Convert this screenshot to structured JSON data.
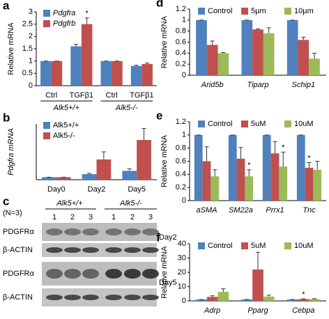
{
  "chart_data": [
    {
      "type": "bar",
      "label": "a",
      "ylabel": "Relative mRNA",
      "categories": [
        "Ctrl",
        "TGFβ1",
        "Ctrl",
        "TGFβ1"
      ],
      "groups": [
        "Alk5+/+",
        "Alk5-/-"
      ],
      "series": [
        {
          "name": "Pdgfra",
          "color": "#4f81bd",
          "values": [
            1,
            1.6,
            1,
            0.8
          ],
          "errors": [
            0,
            0.08,
            0,
            0.03
          ]
        },
        {
          "name": "Pdgfrb",
          "color": "#c0504d",
          "values": [
            1,
            2.5,
            1,
            0.88
          ],
          "errors": [
            0,
            0.25,
            0,
            0.04
          ]
        }
      ],
      "ylim": [
        0,
        3
      ],
      "yticks": [
        0,
        0.5,
        1,
        1.5,
        2,
        2.5,
        3
      ],
      "legend": "top-left",
      "annotations": [
        {
          "text": "*",
          "series": 1,
          "category": 1
        }
      ]
    },
    {
      "type": "bar",
      "label": "b",
      "ylabel": "Pdgfra mRNA",
      "categories": [
        "Day0",
        "Day2",
        "Day5"
      ],
      "series": [
        {
          "name": "Alk5+/+",
          "color": "#4f81bd",
          "values": [
            1,
            2.2,
            3.5
          ],
          "errors": [
            0,
            0.3,
            0.8
          ]
        },
        {
          "name": "Alk5-/-",
          "color": "#c0504d",
          "values": [
            1,
            8,
            15.7
          ],
          "errors": [
            0,
            3,
            4.5
          ]
        }
      ],
      "ylim": [
        0,
        22
      ],
      "legend": "top-left"
    },
    {
      "type": "bar",
      "label": "d",
      "ylabel": "Relative mRNA",
      "categories": [
        "Arid5b",
        "Tiparp",
        "Schip1"
      ],
      "series": [
        {
          "name": "Control",
          "color": "#4f81bd",
          "values": [
            1,
            1,
            1
          ],
          "errors": [
            0,
            0,
            0
          ]
        },
        {
          "name": "5µm",
          "color": "#c0504d",
          "values": [
            0.55,
            0.83,
            0.64
          ],
          "errors": [
            0.07,
            0.01,
            0.05
          ]
        },
        {
          "name": "10µm",
          "color": "#9bbb59",
          "values": [
            0.4,
            0.76,
            0.3
          ],
          "errors": [
            0.01,
            0.1,
            0.1
          ]
        }
      ],
      "ylim": [
        0,
        1.2
      ],
      "yticks": [
        0,
        0.2,
        0.4,
        0.6,
        0.8,
        1,
        1.2
      ],
      "legend": "top"
    },
    {
      "type": "bar",
      "label": "e",
      "ylabel": "Relative mRNA",
      "categories": [
        "aSMA",
        "SM22a",
        "Prrx1",
        "Tnc"
      ],
      "series": [
        {
          "name": "Control",
          "color": "#4f81bd",
          "values": [
            1,
            1,
            1,
            1
          ],
          "errors": [
            0,
            0,
            0,
            0
          ]
        },
        {
          "name": "5uM",
          "color": "#c0504d",
          "values": [
            0.6,
            0.64,
            0.72,
            0.5
          ],
          "errors": [
            0.22,
            0.17,
            0.18,
            0.08
          ]
        },
        {
          "name": "10uM",
          "color": "#9bbb59",
          "values": [
            0.37,
            0.37,
            0.52,
            0.47
          ],
          "errors": [
            0.1,
            0.1,
            0.22,
            0.13
          ]
        }
      ],
      "ylim": [
        0,
        1.2
      ],
      "yticks": [
        0,
        0.2,
        0.4,
        0.6,
        0.8,
        1,
        1.2
      ],
      "legend": "top",
      "annotations": [
        {
          "text": "*",
          "series": 2,
          "category": 1
        },
        {
          "text": "*",
          "series": 2,
          "category": 2
        },
        {
          "text": "*",
          "series": 1,
          "category": 3
        }
      ]
    },
    {
      "type": "bar",
      "label": "f",
      "ylabel": "Relative mRNA",
      "categories": [
        "Adrp",
        "Pparg",
        "Cebpa"
      ],
      "series": [
        {
          "name": "Control",
          "color": "#4f81bd",
          "values": [
            1,
            1,
            1
          ],
          "errors": [
            0,
            0,
            0
          ]
        },
        {
          "name": "5uM",
          "color": "#c0504d",
          "values": [
            2.8,
            22,
            1.2
          ],
          "errors": [
            0.8,
            12,
            0.2
          ]
        },
        {
          "name": "10uM",
          "color": "#9bbb59",
          "values": [
            6.3,
            3,
            1.3
          ],
          "errors": [
            2.2,
            1,
            0.2
          ]
        }
      ],
      "ylim": [
        0,
        40
      ],
      "yticks": [
        0,
        10,
        20,
        30,
        40
      ],
      "legend": "top",
      "annotations": [
        {
          "text": "*",
          "series": 1,
          "category": 2
        }
      ]
    }
  ],
  "blot": {
    "label": "c",
    "n": "(N=3)",
    "groups": [
      "Alk5+/+",
      "Alk5-/-"
    ],
    "lanes": [
      "1",
      "2",
      "3",
      "1",
      "2",
      "3"
    ],
    "rows": [
      "PDGFRα",
      "β-ACTIN",
      "PDGFRα",
      "β-ACTIN"
    ],
    "days": [
      "Day2",
      "Day5"
    ]
  }
}
